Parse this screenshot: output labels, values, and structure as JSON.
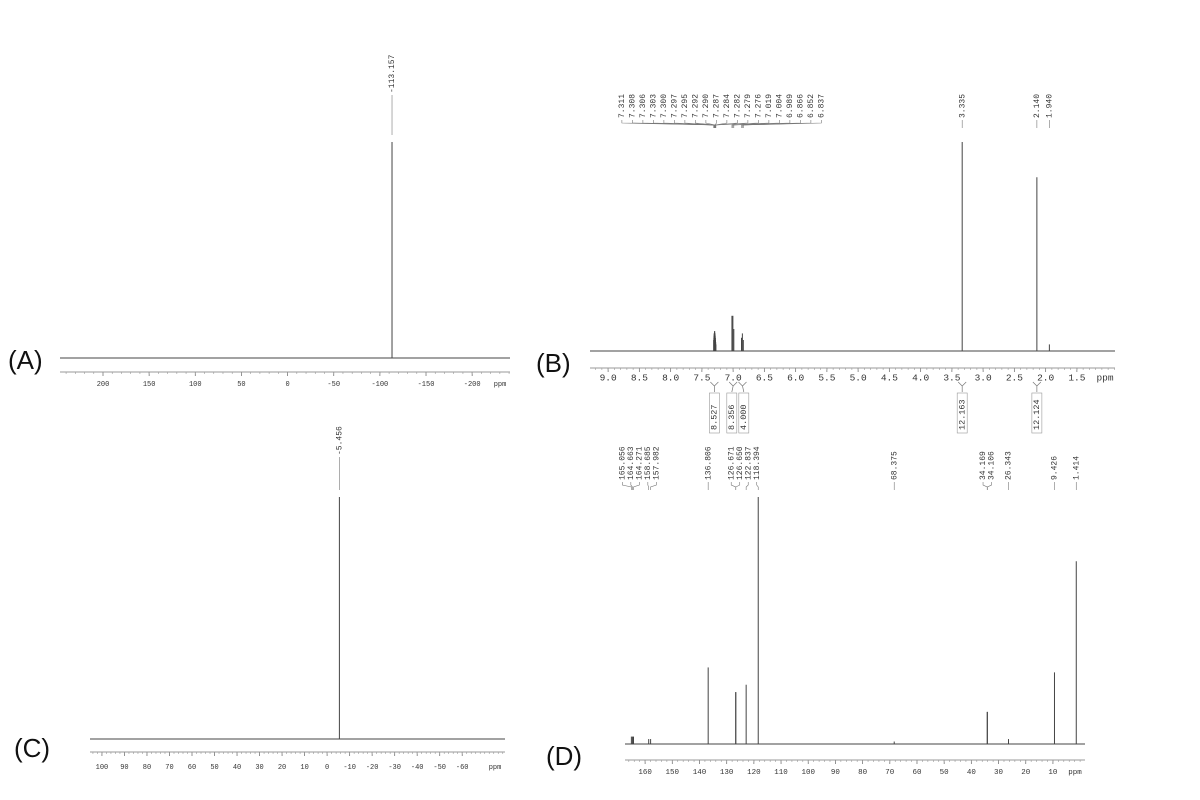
{
  "chart_data": [
    {
      "type": "spectrum",
      "label": "(A)",
      "x_label": "ppm",
      "xlim": [
        246.6,
        -241
      ],
      "xticks": [
        200,
        150,
        100,
        50,
        0,
        -50,
        -100,
        -150,
        -200
      ],
      "ylim": [
        0,
        100
      ],
      "x": [
        -113.157
      ],
      "values": [
        100
      ],
      "x_labels": [
        "-113.157"
      ]
    },
    {
      "type": "spectrum",
      "label": "(B)",
      "x_label": "ppm",
      "xlim": [
        9.29,
        0.89
      ],
      "xticks": [
        {
          "value": 9,
          "label": "9.0"
        },
        8.5,
        {
          "value": 8,
          "label": "8.0"
        },
        7.5,
        {
          "value": 7,
          "label": "7.0"
        },
        6.5,
        {
          "value": 6,
          "label": "6.0"
        },
        5.5,
        {
          "value": 5,
          "label": "5.0"
        },
        4.5,
        {
          "value": 4,
          "label": "4.0"
        },
        3.5,
        {
          "value": 3,
          "label": "3.0"
        },
        2.5,
        {
          "value": 2,
          "label": "2.0"
        },
        1.5
      ],
      "ylim": [
        0,
        100
      ],
      "x": [
        7.311,
        7.308,
        7.306,
        7.303,
        7.3,
        7.297,
        7.295,
        7.292,
        7.29,
        7.287,
        7.284,
        7.282,
        7.279,
        7.276,
        7.019,
        7.004,
        6.989,
        6.866,
        6.852,
        6.837,
        3.335,
        2.14,
        1.94
      ],
      "values": [
        5,
        6,
        7,
        8,
        8,
        9,
        9,
        8,
        8,
        7,
        6,
        5,
        4,
        3,
        16,
        16,
        10,
        6,
        8,
        5,
        95,
        79,
        3
      ],
      "x_labels": [
        "7.311",
        "7.308",
        "7.306",
        "7.303",
        "7.300",
        "7.297",
        "7.295",
        "7.292",
        "7.290",
        "7.287",
        "7.284",
        "7.282",
        "7.279",
        "7.276",
        "7.019",
        "7.004",
        "6.989",
        "6.866",
        "6.852",
        "6.837",
        "3.335",
        "2.140",
        "1.940"
      ],
      "integrals": {
        "x": [
          7.3,
          7.0,
          6.85,
          3.335,
          2.14
        ],
        "values": [
          8.527,
          8.356,
          4,
          12.163,
          12.124
        ],
        "value_labels": [
          "8.527",
          "8.356",
          "4.000",
          "12.163",
          "12.124"
        ]
      }
    },
    {
      "type": "spectrum",
      "label": "(C)",
      "x_label": "ppm",
      "xlim": [
        105.3,
        -79
      ],
      "xticks": [
        100,
        90,
        80,
        70,
        60,
        50,
        40,
        30,
        20,
        10,
        0,
        -10,
        -20,
        -30,
        -40,
        -50,
        -60
      ],
      "ylim": [
        0,
        100
      ],
      "x": [
        -5.456
      ],
      "values": [
        100
      ],
      "x_labels": [
        "-5.456"
      ]
    },
    {
      "type": "spectrum",
      "label": "(D)",
      "x_label": "ppm",
      "xlim": [
        167.4,
        -1.8
      ],
      "xticks": [
        160,
        150,
        140,
        130,
        120,
        110,
        100,
        90,
        80,
        70,
        60,
        50,
        40,
        30,
        20,
        10
      ],
      "ylim": [
        0,
        100
      ],
      "x": [
        165.056,
        164.663,
        164.271,
        158.685,
        157.982,
        136.806,
        126.671,
        126.65,
        122.837,
        118.394,
        68.375,
        34.169,
        34.106,
        26.343,
        9.426,
        1.414
      ],
      "values": [
        3,
        3,
        3,
        2,
        2,
        31,
        21,
        21,
        24,
        100,
        1,
        13,
        13,
        2,
        29,
        74
      ],
      "x_labels": [
        "165.056",
        "164.663",
        "164.271",
        "158.685",
        "157.982",
        "136.806",
        "126.671",
        "126.650",
        "122.837",
        "118.394",
        "68.375",
        "34.169",
        "34.106",
        "26.343",
        "9.426",
        "1.414"
      ]
    }
  ]
}
